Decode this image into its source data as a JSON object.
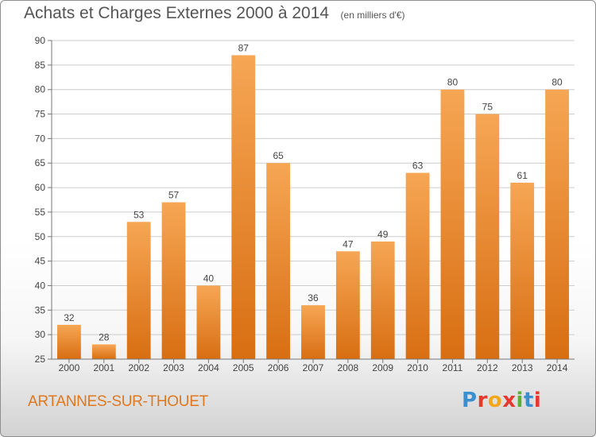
{
  "header": {
    "title": "Achats et Charges Externes 2000 à 2014",
    "subtitle": "(en milliers d'€)"
  },
  "footer": {
    "place": "ARTANNES-SUR-THOUET",
    "logo": "Proxiti",
    "logo_colors": [
      "#3a8fd0",
      "#e8372c",
      "#f2a71b",
      "#e8372c",
      "#5cb032",
      "#3a8fd0",
      "#e8372c"
    ]
  },
  "colors": {
    "bar_top": "#f6a654",
    "bar_bottom": "#d86e12",
    "grid": "#cccccc",
    "axis": "#777777",
    "text": "#444444"
  },
  "chart_data": {
    "type": "bar",
    "categories": [
      "2000",
      "2001",
      "2002",
      "2003",
      "2004",
      "2005",
      "2006",
      "2007",
      "2008",
      "2009",
      "2010",
      "2011",
      "2012",
      "2013",
      "2014"
    ],
    "values": [
      32,
      28,
      53,
      57,
      40,
      87,
      65,
      36,
      47,
      49,
      63,
      80,
      75,
      61,
      80
    ],
    "ylim": [
      25,
      90
    ],
    "yticks": [
      25,
      30,
      35,
      40,
      45,
      50,
      55,
      60,
      65,
      70,
      75,
      80,
      85,
      90
    ],
    "grid": true
  }
}
